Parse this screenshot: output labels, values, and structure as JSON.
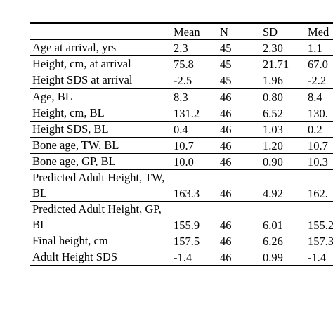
{
  "table": {
    "header": [
      "Mean",
      "N",
      "SD",
      "Med"
    ],
    "rows": [
      [
        "Age at arrival, yrs",
        "2.3",
        "45",
        "2.30",
        "1.1"
      ],
      [
        "Height, cm, at arrival",
        "75.8",
        "45",
        "21.71",
        "67.0"
      ],
      [
        "Height SDS at arrival",
        "-2.5",
        "45",
        "1.96",
        "-2.2"
      ],
      [
        "Age, BL",
        "8.3",
        "46",
        "0.80",
        "8.4"
      ],
      [
        "Height, cm, BL",
        "131.2",
        "46",
        "6.52",
        "130."
      ],
      [
        "Height SDS, BL",
        "0.4",
        "46",
        "1.03",
        "0.2"
      ],
      [
        "Bone age, TW, BL",
        "10.7",
        "46",
        "1.20",
        "10.7"
      ],
      [
        "Bone age, GP, BL",
        "10.0",
        "46",
        "0.90",
        "10.3"
      ],
      [
        "Predicted Adult Height, TW, BL",
        "163.3",
        "46",
        "4.92",
        "162."
      ],
      [
        "Predicted Adult Height, GP, BL",
        "155.9",
        "46",
        "6.01",
        "155.2"
      ],
      [
        "Final height, cm",
        "157.5",
        "46",
        "6.26",
        "157.3"
      ],
      [
        "Adult Height SDS",
        "-1.4",
        "46",
        "0.99",
        "-1.4"
      ]
    ]
  }
}
